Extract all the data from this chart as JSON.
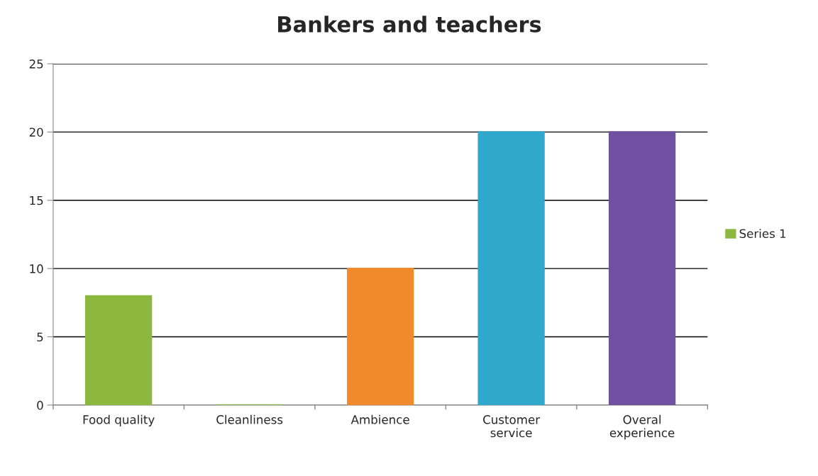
{
  "chart_data": {
    "type": "bar",
    "title": "Bankers and teachers",
    "categories": [
      "Food quality",
      "Cleanliness",
      "Ambience",
      "Customer\nservice",
      "Overal\nexperience"
    ],
    "series": [
      {
        "name": "Series 1",
        "color": "#8cb840",
        "colors": [
          "#8cb840",
          "#8cb840",
          "#f08a2a",
          "#30a8cc",
          "#7050a0"
        ],
        "values": [
          8,
          0,
          10,
          20,
          20
        ]
      }
    ],
    "ylim": [
      0,
      25
    ],
    "yticks": [
      0,
      5,
      10,
      15,
      20,
      25
    ],
    "grid": "y",
    "legend": "right"
  }
}
